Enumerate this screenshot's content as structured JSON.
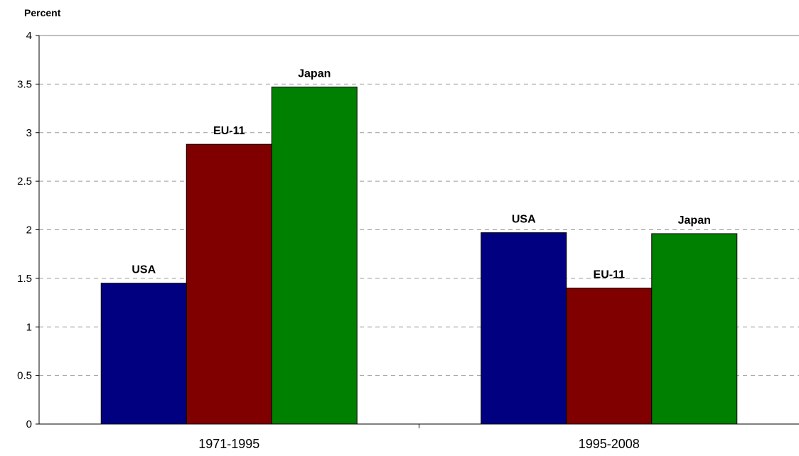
{
  "chart_data": {
    "type": "bar",
    "title": "",
    "xlabel": "",
    "ylabel": "Percent",
    "ylim": [
      0,
      4
    ],
    "yticks": [
      "0",
      "0.5",
      "1",
      "1.5",
      "2",
      "2.5",
      "3",
      "3.5",
      "4"
    ],
    "grid": "horizontal dashed",
    "legend": "none (series labeled above bars)",
    "categories": [
      "1971-1995",
      "1995-2008"
    ],
    "series": [
      {
        "name": "USA",
        "color": "#000080",
        "values": [
          1.45,
          1.97
        ]
      },
      {
        "name": "EU-11",
        "color": "#800000",
        "values": [
          2.88,
          1.4
        ]
      },
      {
        "name": "Japan",
        "color": "#008000",
        "values": [
          3.47,
          1.96
        ]
      }
    ]
  }
}
